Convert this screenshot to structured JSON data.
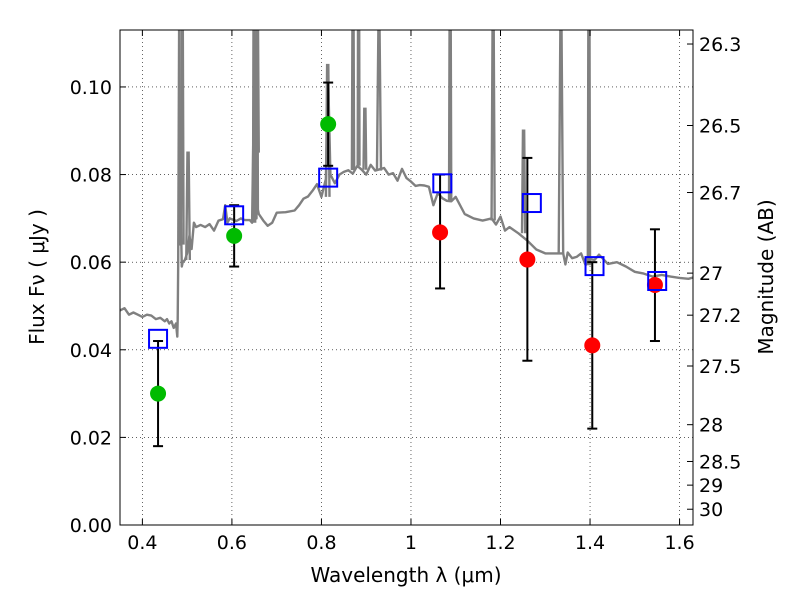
{
  "chart_data": {
    "type": "scatter",
    "xlabel": "Wavelength  λ (μm)",
    "ylabel": "Flux  Fν  ( μJy )",
    "y2label": "Magnitude (AB)",
    "xlim": [
      0.35,
      1.63
    ],
    "ylim": [
      0.0,
      0.113
    ],
    "xticks": [
      0.4,
      0.6,
      0.8,
      1.0,
      1.2,
      1.4,
      1.6
    ],
    "xtick_labels": [
      "0.4",
      "0.6",
      "0.8",
      "1",
      "1.2",
      "1.4",
      "1.6"
    ],
    "yticks": [
      0.0,
      0.02,
      0.04,
      0.06,
      0.08,
      0.1
    ],
    "ytick_labels": [
      "0.00",
      "0.02",
      "0.04",
      "0.06",
      "0.08",
      "0.10"
    ],
    "mag_ticks": [
      {
        "label": "26.3",
        "flux": 0.1098
      },
      {
        "label": "26.5",
        "flux": 0.0912
      },
      {
        "label": "26.7",
        "flux": 0.0759
      },
      {
        "label": "27",
        "flux": 0.0575
      },
      {
        "label": "27.2",
        "flux": 0.0479
      },
      {
        "label": "27.5",
        "flux": 0.0363
      },
      {
        "label": "28",
        "flux": 0.0229
      },
      {
        "label": "28.5",
        "flux": 0.0145
      },
      {
        "label": "29",
        "flux": 0.0091
      },
      {
        "label": "30",
        "flux": 0.0036
      }
    ],
    "grid": true,
    "grid_style": "dotted",
    "colors": {
      "spectrum": "#808080",
      "detection": "#00bb00",
      "nondetection": "#ff0000",
      "model": "#0000ff",
      "errorbar": "#000000"
    },
    "series": [
      {
        "kind": "model_spectrum",
        "x": [
          0.35,
          0.36,
          0.37,
          0.38,
          0.39,
          0.4,
          0.41,
          0.42,
          0.43,
          0.44,
          0.45,
          0.455,
          0.46,
          0.465,
          0.47,
          0.475,
          0.478,
          0.479,
          0.48,
          0.482,
          0.483,
          0.485,
          0.486,
          0.488,
          0.49,
          0.495,
          0.5,
          0.505,
          0.51,
          0.515,
          0.52,
          0.53,
          0.54,
          0.55,
          0.56,
          0.57,
          0.58,
          0.585,
          0.59,
          0.595,
          0.6,
          0.61,
          0.62,
          0.625,
          0.63,
          0.64,
          0.645,
          0.648,
          0.65,
          0.652,
          0.655,
          0.656,
          0.657,
          0.658,
          0.66,
          0.67,
          0.68,
          0.69,
          0.7,
          0.72,
          0.74,
          0.75,
          0.76,
          0.77,
          0.78,
          0.79,
          0.8,
          0.81,
          0.815,
          0.82,
          0.83,
          0.84,
          0.85,
          0.86,
          0.87,
          0.88,
          0.89,
          0.9,
          0.91,
          0.92,
          0.93,
          0.94,
          0.95,
          0.96,
          0.97,
          0.98,
          0.99,
          1.0,
          1.01,
          1.02,
          1.03,
          1.04,
          1.05,
          1.06,
          1.07,
          1.08,
          1.09,
          1.1,
          1.12,
          1.14,
          1.16,
          1.18,
          1.19,
          1.2,
          1.21,
          1.22,
          1.24,
          1.26,
          1.28,
          1.3,
          1.32,
          1.33,
          1.34,
          1.345,
          1.35,
          1.36,
          1.37,
          1.38,
          1.39,
          1.4,
          1.41,
          1.42,
          1.44,
          1.46,
          1.48,
          1.5,
          1.52,
          1.54,
          1.56,
          1.58,
          1.6,
          1.62,
          1.63
        ],
        "y": [
          0.049,
          0.0495,
          0.048,
          0.0485,
          0.048,
          0.0475,
          0.048,
          0.0478,
          0.047,
          0.0473,
          0.0465,
          0.047,
          0.046,
          0.0465,
          0.045,
          0.046,
          0.043,
          0.047,
          0.06,
          0.113,
          0.07,
          0.064,
          0.069,
          0.059,
          0.06,
          0.0605,
          0.062,
          0.066,
          0.063,
          0.069,
          0.068,
          0.0685,
          0.068,
          0.0687,
          0.0672,
          0.0695,
          0.0698,
          0.073,
          0.069,
          0.07,
          0.0698,
          0.0694,
          0.07,
          0.0697,
          0.0696,
          0.0696,
          0.069,
          0.09,
          0.113,
          0.085,
          0.07,
          0.113,
          0.113,
          0.072,
          0.071,
          0.0695,
          0.0683,
          0.069,
          0.0713,
          0.0714,
          0.0718,
          0.073,
          0.0745,
          0.075,
          0.0763,
          0.0778,
          0.0749,
          0.079,
          0.102,
          0.08,
          0.078,
          0.08,
          0.0806,
          0.081,
          0.0802,
          0.082,
          0.0811,
          0.08,
          0.0822,
          0.0809,
          0.0812,
          0.0815,
          0.08,
          0.0803,
          0.0786,
          0.0813,
          0.0792,
          0.0784,
          0.0774,
          0.0776,
          0.0775,
          0.0772,
          0.073,
          0.0758,
          0.0746,
          0.074,
          0.0739,
          0.0749,
          0.071,
          0.07,
          0.0695,
          0.07,
          0.0686,
          0.0704,
          0.0672,
          0.068,
          0.0666,
          0.0649,
          0.0629,
          0.062,
          0.062,
          0.062,
          0.062,
          0.0595,
          0.0622,
          0.0609,
          0.0612,
          0.062,
          0.0593,
          0.0607,
          0.0605,
          0.0617,
          0.0596,
          0.06,
          0.059,
          0.0578,
          0.0574,
          0.0567,
          0.0571,
          0.0567,
          0.0564,
          0.0562,
          0.0565
        ],
        "spikes": [
          {
            "x0": 0.486,
            "x1": 0.492,
            "peak": 0.113
          },
          {
            "x0": 0.498,
            "x1": 0.506,
            "peak": 0.085
          },
          {
            "x0": 0.647,
            "x1": 0.652,
            "peak": 0.113
          },
          {
            "x0": 0.654,
            "x1": 0.66,
            "peak": 0.113
          },
          {
            "x0": 0.81,
            "x1": 0.818,
            "peak": 0.105
          },
          {
            "x0": 0.868,
            "x1": 0.873,
            "peak": 0.113
          },
          {
            "x0": 0.881,
            "x1": 0.885,
            "peak": 0.113
          },
          {
            "x0": 0.894,
            "x1": 0.9,
            "peak": 0.095
          },
          {
            "x0": 0.924,
            "x1": 0.933,
            "peak": 0.113
          },
          {
            "x0": 1.085,
            "x1": 1.09,
            "peak": 0.113
          },
          {
            "x0": 1.18,
            "x1": 1.187,
            "peak": 0.113
          },
          {
            "x0": 1.248,
            "x1": 1.255,
            "peak": 0.09
          },
          {
            "x0": 1.33,
            "x1": 1.34,
            "peak": 0.113
          },
          {
            "x0": 1.395,
            "x1": 1.4,
            "peak": 0.113
          }
        ]
      },
      {
        "kind": "observed_detection",
        "x": [
          0.435,
          0.605,
          0.815
        ],
        "y": [
          0.03,
          0.066,
          0.0915
        ],
        "yerr_low": [
          0.018,
          0.059,
          0.082
        ],
        "yerr_high": [
          0.042,
          0.073,
          0.101
        ]
      },
      {
        "kind": "observed_nondetection",
        "x": [
          1.065,
          1.26,
          1.405,
          1.545
        ],
        "y": [
          0.0668,
          0.0606,
          0.041,
          0.0548
        ],
        "yerr_low": [
          0.054,
          0.0375,
          0.022,
          0.042
        ],
        "yerr_high": [
          0.08,
          0.0838,
          0.06,
          0.0675
        ]
      },
      {
        "kind": "model_photometry",
        "x": [
          0.435,
          0.605,
          0.815,
          1.07,
          1.27,
          1.41,
          1.55
        ],
        "y": [
          0.0425,
          0.0707,
          0.0793,
          0.078,
          0.0735,
          0.0591,
          0.0557
        ]
      }
    ]
  }
}
